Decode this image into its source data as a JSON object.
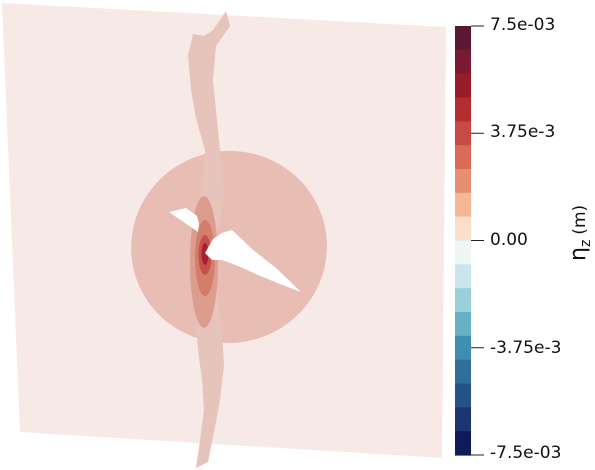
{
  "colorbar": {
    "title_symbol": "η",
    "title_subscript": "z",
    "title_unit": "(m)",
    "tick_labels": [
      "7.5e-03",
      "3.75e-3",
      "0.00",
      "-3.75e-3",
      "-7.5e-03"
    ],
    "tick_values": [
      0.0075,
      0.00375,
      0.0,
      -0.00375,
      -0.0075
    ],
    "range": [
      -0.0075,
      0.0075
    ],
    "colors_top_to_bottom": [
      "#5c1735",
      "#7a1a2e",
      "#971d2b",
      "#b42e31",
      "#c54b43",
      "#d86c56",
      "#e88f73",
      "#f4b896",
      "#f9dfc9",
      "#eef6f6",
      "#c8e6ec",
      "#98d0db",
      "#66b1c4",
      "#3f8fb0",
      "#2e6f9c",
      "#255288",
      "#1c3574",
      "#0f1a5a"
    ]
  },
  "scene_colors": {
    "background": "#ffffff",
    "plane": "#f7e9e6",
    "disk": "#e8beb4",
    "vertical_strip": "#e7c4bb",
    "contour_1": "#dc9d8e",
    "contour_2": "#d47d6b",
    "contour_3": "#c8504a",
    "contour_4": "#a8202d",
    "crack": "#ffffff"
  }
}
